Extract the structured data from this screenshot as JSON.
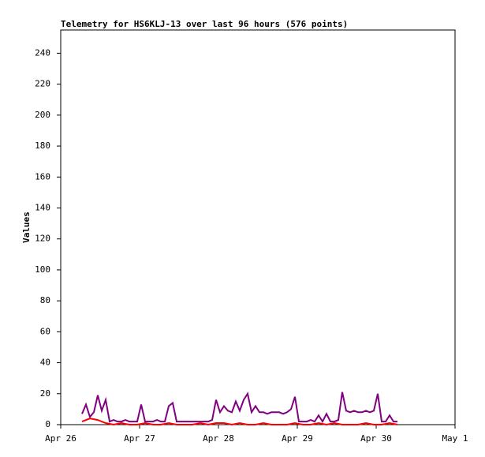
{
  "chart_data": {
    "type": "line",
    "title": "Telemetry for HS6KLJ-13 over last 96 hours (576 points)",
    "y_label": "Values",
    "xlim": [
      0,
      5
    ],
    "xticks": [
      {
        "value": 0,
        "label": "Apr 26"
      },
      {
        "value": 1,
        "label": "Apr 27"
      },
      {
        "value": 2,
        "label": "Apr 28"
      },
      {
        "value": 3,
        "label": "Apr 29"
      },
      {
        "value": 4,
        "label": "Apr 30"
      },
      {
        "value": 5,
        "label": "May 1"
      }
    ],
    "ylim": [
      0,
      255
    ],
    "yticks": [
      0,
      20,
      40,
      60,
      80,
      100,
      120,
      140,
      160,
      180,
      200,
      220,
      240
    ],
    "series": [
      {
        "color": "#800080",
        "x": [
          0.27,
          0.32,
          0.37,
          0.42,
          0.47,
          0.52,
          0.57,
          0.62,
          0.67,
          0.72,
          0.77,
          0.82,
          0.87,
          0.92,
          0.97,
          1.02,
          1.07,
          1.12,
          1.17,
          1.22,
          1.27,
          1.32,
          1.37,
          1.42,
          1.47,
          1.52,
          1.57,
          1.62,
          1.67,
          1.72,
          1.77,
          1.82,
          1.87,
          1.92,
          1.97,
          2.02,
          2.07,
          2.12,
          2.17,
          2.22,
          2.27,
          2.32,
          2.37,
          2.42,
          2.47,
          2.52,
          2.57,
          2.62,
          2.67,
          2.72,
          2.77,
          2.82,
          2.87,
          2.92,
          2.97,
          3.02,
          3.07,
          3.12,
          3.17,
          3.22,
          3.27,
          3.32,
          3.37,
          3.42,
          3.47,
          3.52,
          3.57,
          3.62,
          3.67,
          3.72,
          3.77,
          3.82,
          3.87,
          3.92,
          3.97,
          4.02,
          4.07,
          4.12,
          4.17,
          4.22,
          4.27
        ],
        "values": [
          7,
          13,
          5,
          8,
          19,
          9,
          16,
          2,
          3,
          2,
          2,
          3,
          2,
          2,
          2,
          13,
          2,
          2,
          2,
          3,
          2,
          2,
          12,
          14,
          2,
          2,
          2,
          2,
          2,
          2,
          2,
          2,
          2,
          3,
          16,
          8,
          12,
          9,
          8,
          15,
          9,
          16,
          20,
          8,
          12,
          8,
          8,
          7,
          8,
          8,
          8,
          7,
          8,
          10,
          18,
          2,
          2,
          2,
          3,
          2,
          6,
          2,
          7,
          2,
          2,
          3,
          21,
          9,
          8,
          9,
          8,
          8,
          9,
          8,
          9,
          20,
          2,
          2,
          6,
          2,
          2
        ]
      },
      {
        "color": "#ff0000",
        "x": [
          0.27,
          0.37,
          0.47,
          0.57,
          0.67,
          0.77,
          0.87,
          0.97,
          1.07,
          1.17,
          1.27,
          1.37,
          1.47,
          1.57,
          1.67,
          1.77,
          1.87,
          1.97,
          2.07,
          2.17,
          2.27,
          2.37,
          2.47,
          2.57,
          2.67,
          2.77,
          2.87,
          2.97,
          3.07,
          3.17,
          3.27,
          3.37,
          3.47,
          3.57,
          3.67,
          3.77,
          3.87,
          3.97,
          4.07,
          4.17,
          4.27
        ],
        "values": [
          2,
          4,
          3,
          1,
          0,
          1,
          0,
          0,
          1,
          0,
          0,
          1,
          0,
          0,
          0,
          1,
          0,
          1,
          1,
          0,
          1,
          0,
          0,
          1,
          0,
          0,
          0,
          1,
          0,
          0,
          1,
          0,
          1,
          0,
          0,
          0,
          1,
          0,
          0,
          1,
          0
        ]
      }
    ]
  }
}
